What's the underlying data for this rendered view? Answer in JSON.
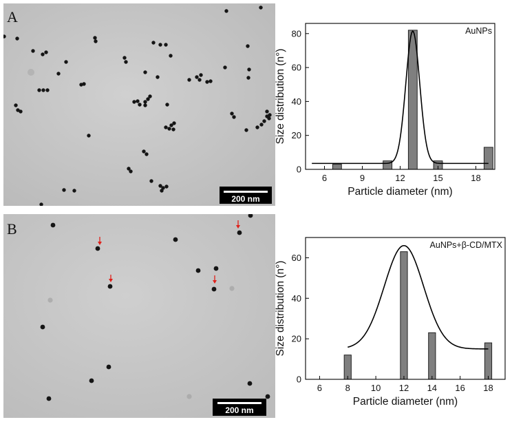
{
  "panels": [
    {
      "letter": "A",
      "scale_bar_label": "200 nm"
    },
    {
      "letter": "B",
      "scale_bar_label": "200 nm"
    }
  ],
  "colors": {
    "bar_fill": "#7f7f7f",
    "arrow": "#e0201a",
    "tem_background": "#c6c6c6",
    "particle": "#151515"
  },
  "chart_data": [
    {
      "type": "bar",
      "annotation": "AuNPs",
      "xlabel": "Particle diameter (nm)",
      "ylabel": "Size distribution (n°)",
      "xlim": [
        4.5,
        19.5
      ],
      "ylim": [
        0,
        86
      ],
      "xticks": [
        6,
        9,
        12,
        15,
        18
      ],
      "yticks": [
        0,
        20,
        40,
        60,
        80
      ],
      "bar_width": 0.7,
      "bars": [
        {
          "x": 7,
          "y": 3
        },
        {
          "x": 11,
          "y": 5
        },
        {
          "x": 13,
          "y": 82
        },
        {
          "x": 15,
          "y": 5
        },
        {
          "x": 19,
          "y": 13
        }
      ],
      "fit_curve": {
        "type": "gaussian",
        "baseline": 3.5,
        "peak": 81.5,
        "center": 13,
        "sigma": 0.55,
        "x_range": [
          5,
          19
        ]
      }
    },
    {
      "type": "bar",
      "annotation": "AuNPs+β-CD/MTX",
      "xlabel": "Particle diameter (nm)",
      "ylabel": "Size distribution (n°)",
      "xlim": [
        5,
        19.2
      ],
      "ylim": [
        0,
        70
      ],
      "xticks": [
        6,
        8,
        10,
        12,
        14,
        16,
        18
      ],
      "yticks": [
        0,
        20,
        40,
        60
      ],
      "bar_width": 0.5,
      "bars": [
        {
          "x": 8,
          "y": 12
        },
        {
          "x": 12,
          "y": 63
        },
        {
          "x": 14,
          "y": 23
        },
        {
          "x": 18,
          "y": 18
        }
      ],
      "fit_curve": {
        "type": "gaussian",
        "baseline": 15,
        "peak": 66,
        "center": 12,
        "sigma": 1.4,
        "x_range": [
          8,
          18
        ]
      }
    }
  ]
}
